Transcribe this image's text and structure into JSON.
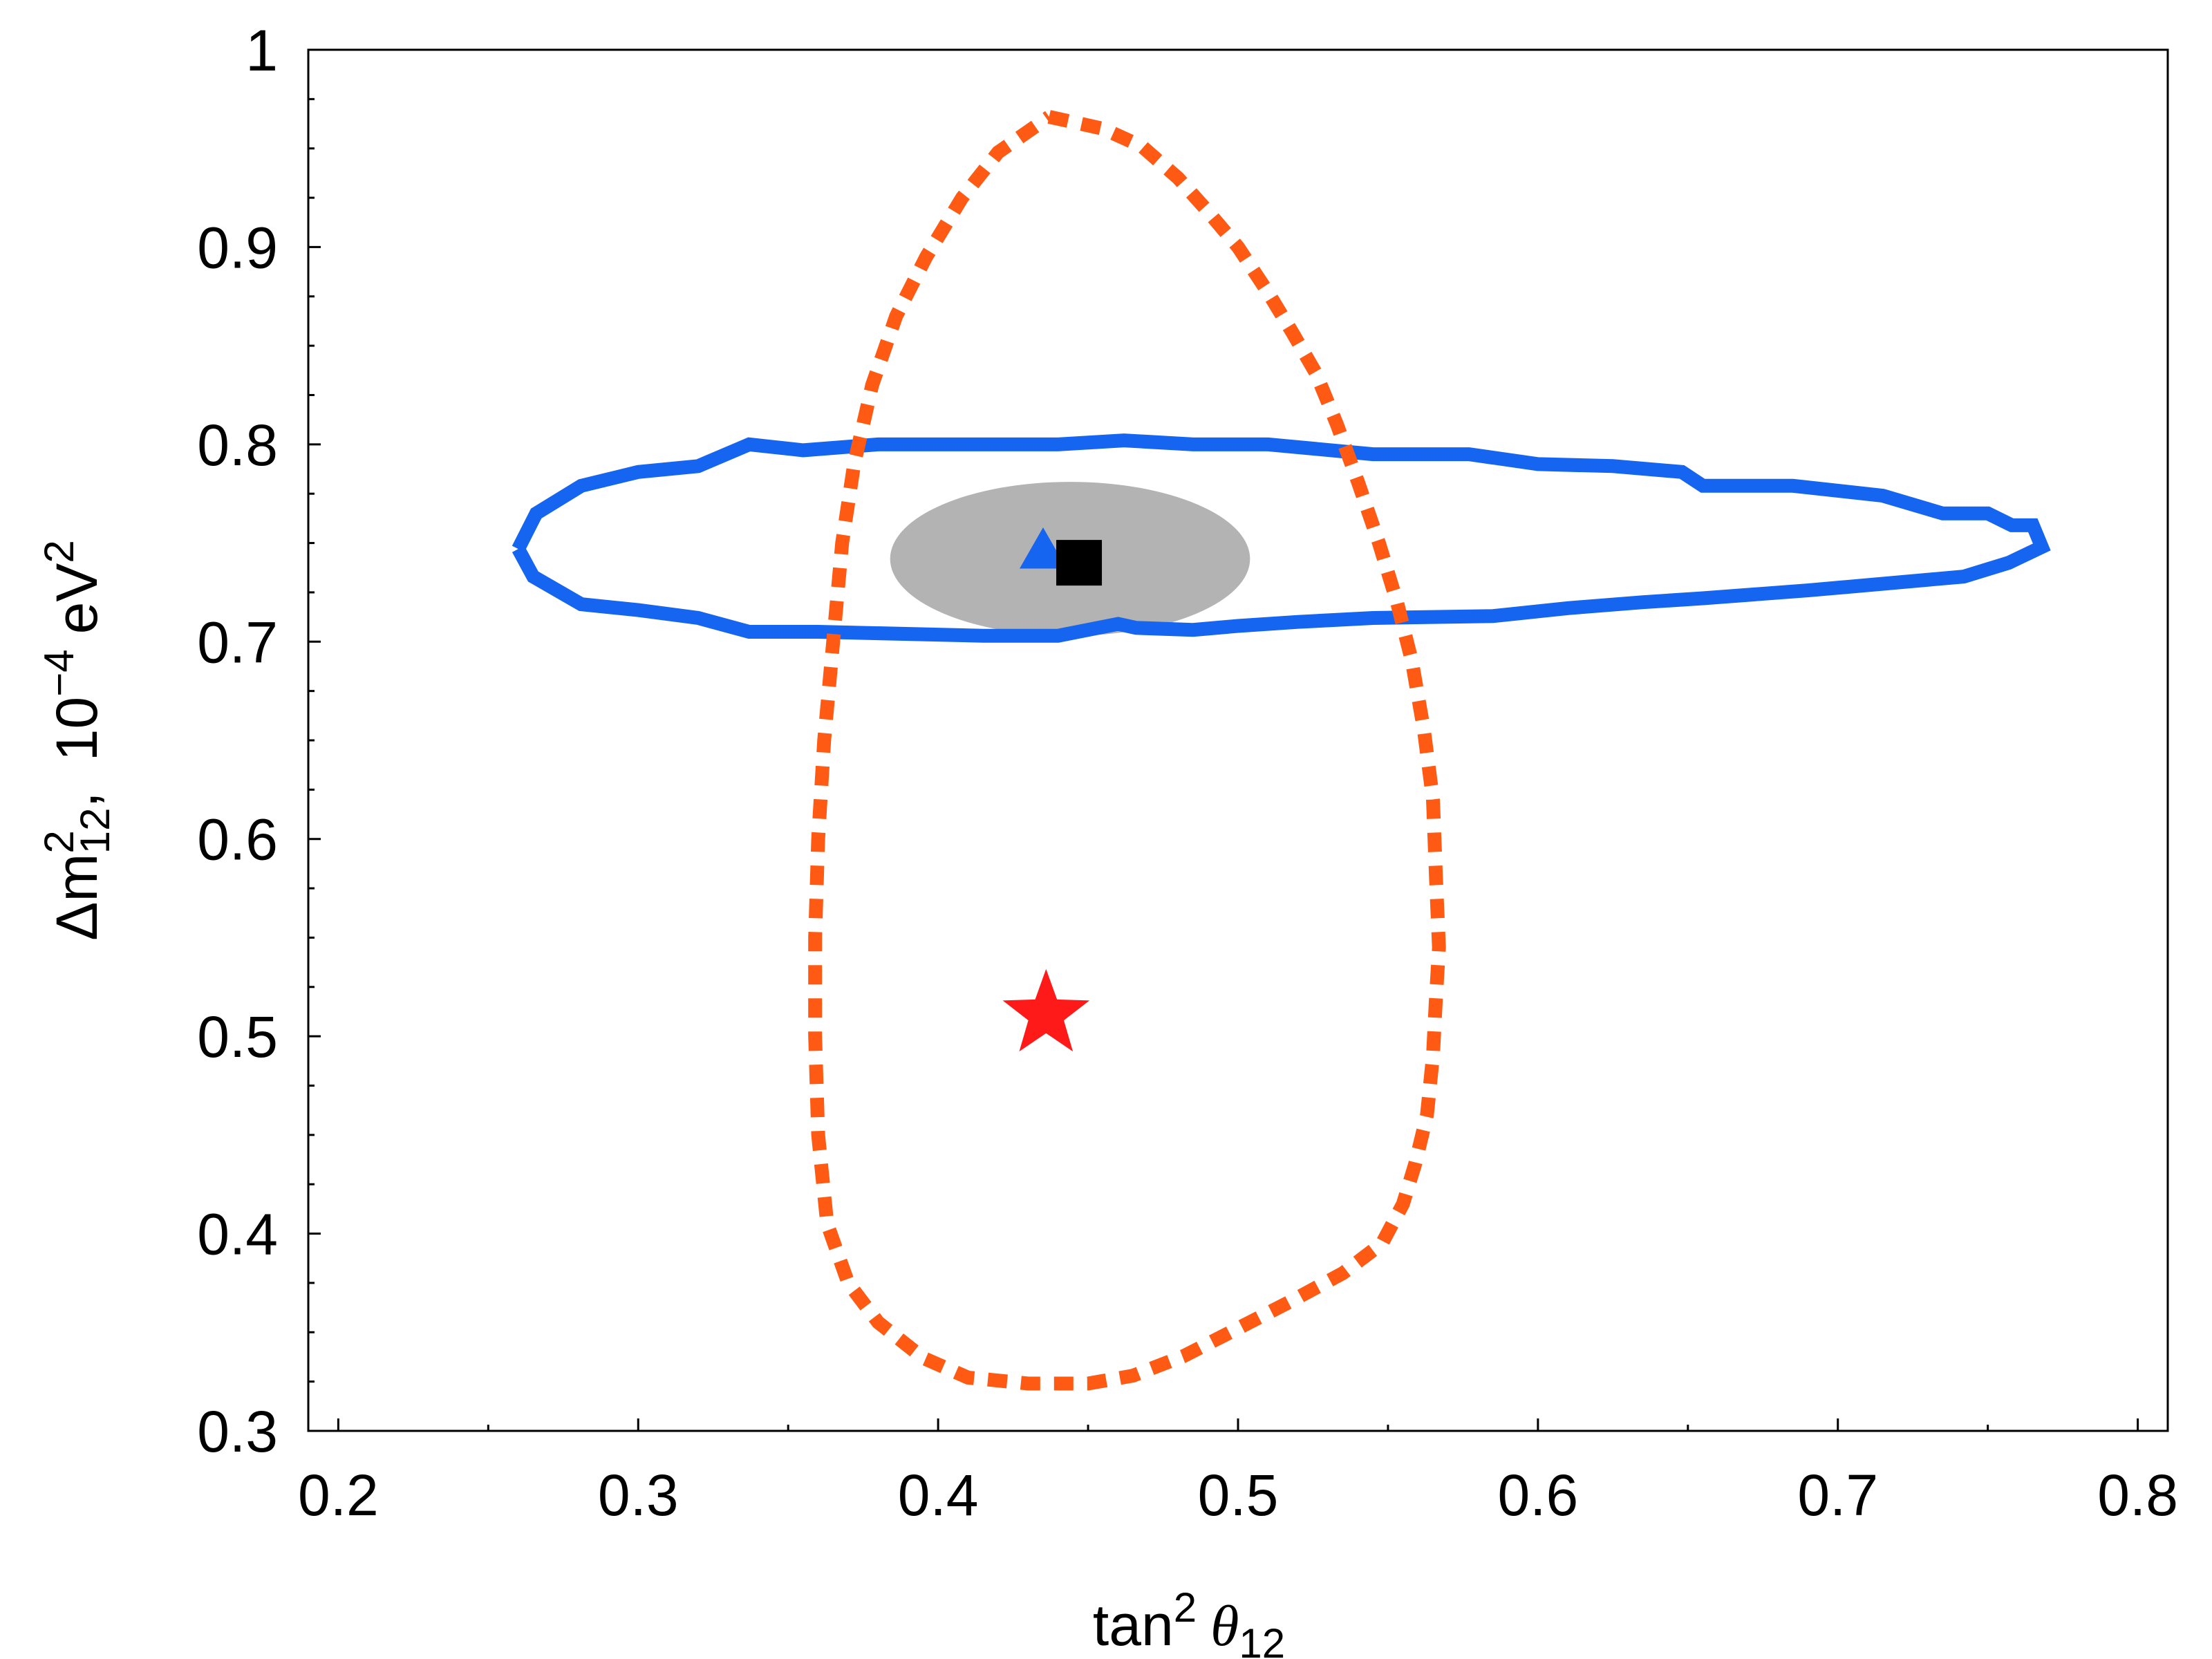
{
  "chart_data": {
    "type": "scatter",
    "xlabel": {
      "base": "tan",
      "sup": "2",
      "greek": "θ",
      "sub": "12"
    },
    "ylabel": {
      "delta": "Δm",
      "sup1": "2",
      "sub1": "12",
      "sep": ",",
      "scale": "10",
      "sup2": "−4",
      "unit": "eV",
      "sup3": "2"
    },
    "xlim": [
      0.19,
      0.81
    ],
    "ylim": [
      0.3,
      1.0
    ],
    "x_ticks": [
      "0.2",
      "0.3",
      "0.4",
      "0.5",
      "0.6",
      "0.7",
      "0.8"
    ],
    "x_tick_values": [
      0.2,
      0.3,
      0.4,
      0.5,
      0.6,
      0.7,
      0.8
    ],
    "y_ticks": [
      "0.3",
      "0.4",
      "0.5",
      "0.6",
      "0.7",
      "0.8",
      "0.9",
      "1"
    ],
    "y_tick_values": [
      0.3,
      0.4,
      0.5,
      0.6,
      0.7,
      0.8,
      0.9,
      1.0
    ],
    "grid": false,
    "colors": {
      "blue_contour": "#1565f0",
      "orange_contour": "#ff5a14",
      "gray_ellipse": "#b3b3b3",
      "star": "#ff1a1a",
      "triangle": "#1565f0",
      "square": "#000000"
    },
    "series": [
      {
        "kind": "contour-solid",
        "points": [
          [
            0.26,
            0.747
          ],
          [
            0.266,
            0.765
          ],
          [
            0.281,
            0.779
          ],
          [
            0.3,
            0.786
          ],
          [
            0.32,
            0.789
          ],
          [
            0.337,
            0.8
          ],
          [
            0.355,
            0.797
          ],
          [
            0.38,
            0.8
          ],
          [
            0.44,
            0.8
          ],
          [
            0.462,
            0.802
          ],
          [
            0.485,
            0.8
          ],
          [
            0.51,
            0.8
          ],
          [
            0.545,
            0.795
          ],
          [
            0.577,
            0.795
          ],
          [
            0.6,
            0.79
          ],
          [
            0.625,
            0.789
          ],
          [
            0.648,
            0.786
          ],
          [
            0.655,
            0.779
          ],
          [
            0.685,
            0.779
          ],
          [
            0.715,
            0.774
          ],
          [
            0.735,
            0.765
          ],
          [
            0.75,
            0.765
          ],
          [
            0.758,
            0.759
          ],
          [
            0.765,
            0.759
          ],
          [
            0.768,
            0.748
          ],
          [
            0.757,
            0.74
          ],
          [
            0.742,
            0.733
          ],
          [
            0.69,
            0.726
          ],
          [
            0.655,
            0.722
          ],
          [
            0.635,
            0.72
          ],
          [
            0.61,
            0.717
          ],
          [
            0.585,
            0.713
          ],
          [
            0.545,
            0.712
          ],
          [
            0.52,
            0.71
          ],
          [
            0.5,
            0.708
          ],
          [
            0.485,
            0.706
          ],
          [
            0.466,
            0.707
          ],
          [
            0.46,
            0.709
          ],
          [
            0.44,
            0.703
          ],
          [
            0.415,
            0.703
          ],
          [
            0.36,
            0.705
          ],
          [
            0.337,
            0.705
          ],
          [
            0.32,
            0.712
          ],
          [
            0.3,
            0.716
          ],
          [
            0.281,
            0.719
          ],
          [
            0.265,
            0.733
          ],
          [
            0.26,
            0.747
          ]
        ]
      },
      {
        "kind": "contour-dotted",
        "points": [
          [
            0.437,
            0.966
          ],
          [
            0.455,
            0.96
          ],
          [
            0.468,
            0.951
          ],
          [
            0.48,
            0.935
          ],
          [
            0.49,
            0.918
          ],
          [
            0.5,
            0.9
          ],
          [
            0.51,
            0.877
          ],
          [
            0.518,
            0.857
          ],
          [
            0.526,
            0.836
          ],
          [
            0.533,
            0.81
          ],
          [
            0.54,
            0.781
          ],
          [
            0.547,
            0.75
          ],
          [
            0.553,
            0.72
          ],
          [
            0.558,
            0.69
          ],
          [
            0.562,
            0.655
          ],
          [
            0.565,
            0.62
          ],
          [
            0.566,
            0.58
          ],
          [
            0.567,
            0.545
          ],
          [
            0.566,
            0.52
          ],
          [
            0.565,
            0.49
          ],
          [
            0.563,
            0.46
          ],
          [
            0.559,
            0.435
          ],
          [
            0.555,
            0.415
          ],
          [
            0.548,
            0.395
          ],
          [
            0.535,
            0.38
          ],
          [
            0.518,
            0.366
          ],
          [
            0.5,
            0.352
          ],
          [
            0.482,
            0.338
          ],
          [
            0.465,
            0.328
          ],
          [
            0.45,
            0.324
          ],
          [
            0.43,
            0.324
          ],
          [
            0.41,
            0.327
          ],
          [
            0.395,
            0.337
          ],
          [
            0.38,
            0.355
          ],
          [
            0.37,
            0.375
          ],
          [
            0.363,
            0.405
          ],
          [
            0.36,
            0.45
          ],
          [
            0.359,
            0.5
          ],
          [
            0.359,
            0.55
          ],
          [
            0.36,
            0.6
          ],
          [
            0.362,
            0.65
          ],
          [
            0.365,
            0.7
          ],
          [
            0.368,
            0.75
          ],
          [
            0.372,
            0.79
          ],
          [
            0.378,
            0.83
          ],
          [
            0.386,
            0.865
          ],
          [
            0.396,
            0.895
          ],
          [
            0.408,
            0.925
          ],
          [
            0.42,
            0.948
          ],
          [
            0.437,
            0.966
          ]
        ]
      }
    ],
    "ellipse": {
      "cx": 0.444,
      "cy": 0.742,
      "rx": 0.06,
      "ry": 0.039
    },
    "markers": [
      {
        "shape": "triangle",
        "x": 0.435,
        "y": 0.746
      },
      {
        "shape": "square",
        "x": 0.447,
        "y": 0.74
      },
      {
        "shape": "star",
        "x": 0.436,
        "y": 0.511
      }
    ]
  }
}
